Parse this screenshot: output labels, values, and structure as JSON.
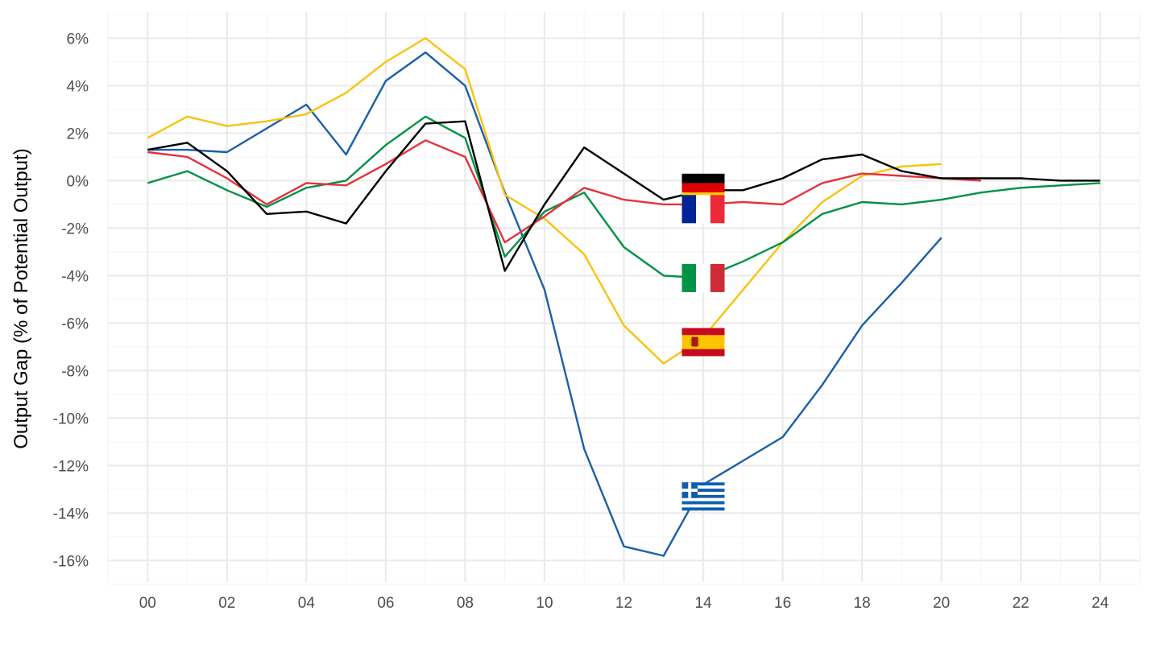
{
  "chart_data": {
    "type": "line",
    "title": "",
    "xlabel": "",
    "ylabel": "Output Gap (% of Potential Output)",
    "xlim": [
      1999,
      2025
    ],
    "ylim": [
      -16.9,
      7.1
    ],
    "grid": true,
    "x_ticks": [
      {
        "value": 2000,
        "label": "00"
      },
      {
        "value": 2002,
        "label": "02"
      },
      {
        "value": 2004,
        "label": "04"
      },
      {
        "value": 2006,
        "label": "06"
      },
      {
        "value": 2008,
        "label": "08"
      },
      {
        "value": 2010,
        "label": "10"
      },
      {
        "value": 2012,
        "label": "12"
      },
      {
        "value": 2014,
        "label": "14"
      },
      {
        "value": 2016,
        "label": "16"
      },
      {
        "value": 2018,
        "label": "18"
      },
      {
        "value": 2020,
        "label": "20"
      },
      {
        "value": 2022,
        "label": "22"
      },
      {
        "value": 2024,
        "label": "24"
      }
    ],
    "y_ticks": [
      {
        "value": 6,
        "label": "6%"
      },
      {
        "value": 4,
        "label": "4%"
      },
      {
        "value": 2,
        "label": "2%"
      },
      {
        "value": 0,
        "label": "0%"
      },
      {
        "value": -2,
        "label": "-2%"
      },
      {
        "value": -4,
        "label": "-4%"
      },
      {
        "value": -6,
        "label": "-6%"
      },
      {
        "value": -8,
        "label": "-8%"
      },
      {
        "value": -10,
        "label": "-10%"
      },
      {
        "value": -12,
        "label": "-12%"
      },
      {
        "value": -14,
        "label": "-14%"
      },
      {
        "value": -16,
        "label": "-16%"
      }
    ],
    "series": [
      {
        "color": "#1b5fa8",
        "flag": "greece",
        "x": [
          2000,
          2001,
          2002,
          2003,
          2004,
          2005,
          2006,
          2007,
          2008,
          2009,
          2010,
          2011,
          2012,
          2013,
          2014,
          2015,
          2016,
          2017,
          2018,
          2019,
          2020
        ],
        "y": [
          1.3,
          1.3,
          1.2,
          2.2,
          3.2,
          1.1,
          4.2,
          5.4,
          4.0,
          -0.5,
          -4.6,
          -11.3,
          -15.4,
          -15.8,
          -12.8,
          -11.8,
          -10.8,
          -8.6,
          -6.1,
          -4.3,
          -2.4
        ]
      },
      {
        "color": "#f9c30c",
        "flag": "spain",
        "x": [
          2000,
          2001,
          2002,
          2003,
          2004,
          2005,
          2006,
          2007,
          2008,
          2009,
          2010,
          2011,
          2012,
          2013,
          2014,
          2015,
          2016,
          2017,
          2018,
          2019,
          2020
        ],
        "y": [
          1.8,
          2.7,
          2.3,
          2.5,
          2.8,
          3.7,
          5.0,
          6.0,
          4.7,
          -0.6,
          -1.6,
          -3.1,
          -6.1,
          -7.7,
          -6.6,
          -4.6,
          -2.6,
          -0.9,
          0.2,
          0.6,
          0.7
        ]
      },
      {
        "color": "#009246",
        "flag": "italy",
        "x": [
          2000,
          2001,
          2002,
          2003,
          2004,
          2005,
          2006,
          2007,
          2008,
          2009,
          2010,
          2011,
          2012,
          2013,
          2014,
          2015,
          2016,
          2017,
          2018,
          2019,
          2020,
          2021,
          2022,
          2023,
          2024
        ],
        "y": [
          -0.1,
          0.4,
          -0.4,
          -1.1,
          -0.3,
          0.0,
          1.5,
          2.7,
          1.8,
          -3.2,
          -1.3,
          -0.5,
          -2.8,
          -4.0,
          -4.1,
          -3.4,
          -2.6,
          -1.4,
          -0.9,
          -1.0,
          -0.8,
          -0.5,
          -0.3,
          -0.2,
          -0.1
        ]
      },
      {
        "color": "#e6323d",
        "flag": "france",
        "x": [
          2000,
          2001,
          2002,
          2003,
          2004,
          2005,
          2006,
          2007,
          2008,
          2009,
          2010,
          2011,
          2012,
          2013,
          2014,
          2015,
          2016,
          2017,
          2018,
          2019,
          2020,
          2021
        ],
        "y": [
          1.2,
          1.0,
          0.1,
          -1.0,
          -0.1,
          -0.2,
          0.7,
          1.7,
          1.0,
          -2.6,
          -1.5,
          -0.3,
          -0.8,
          -1.0,
          -1.0,
          -0.9,
          -1.0,
          -0.1,
          0.3,
          0.2,
          0.1,
          0.0
        ]
      },
      {
        "color": "#000000",
        "flag": "germany",
        "x": [
          2000,
          2001,
          2002,
          2003,
          2004,
          2005,
          2006,
          2007,
          2008,
          2009,
          2010,
          2011,
          2012,
          2013,
          2014,
          2015,
          2016,
          2017,
          2018,
          2019,
          2020,
          2021,
          2022,
          2023,
          2024
        ],
        "y": [
          1.3,
          1.6,
          0.4,
          -1.4,
          -1.3,
          -1.8,
          0.4,
          2.4,
          2.5,
          -3.8,
          -1.0,
          1.4,
          0.3,
          -0.8,
          -0.4,
          -0.4,
          0.1,
          0.9,
          1.1,
          0.4,
          0.1,
          0.1,
          0.1,
          0.0,
          0.0
        ]
      }
    ],
    "flag_markers": [
      {
        "country": "germany",
        "x": 2014,
        "y": -0.3
      },
      {
        "country": "france",
        "x": 2014,
        "y": -1.2
      },
      {
        "country": "italy",
        "x": 2014,
        "y": -4.1
      },
      {
        "country": "spain",
        "x": 2014,
        "y": -6.8
      },
      {
        "country": "greece",
        "x": 2014,
        "y": -13.3
      }
    ],
    "colors": {
      "grid_major": "#ebebeb",
      "grid_minor": "#f5f5f5",
      "tick_text": "#4d4d4d"
    }
  }
}
